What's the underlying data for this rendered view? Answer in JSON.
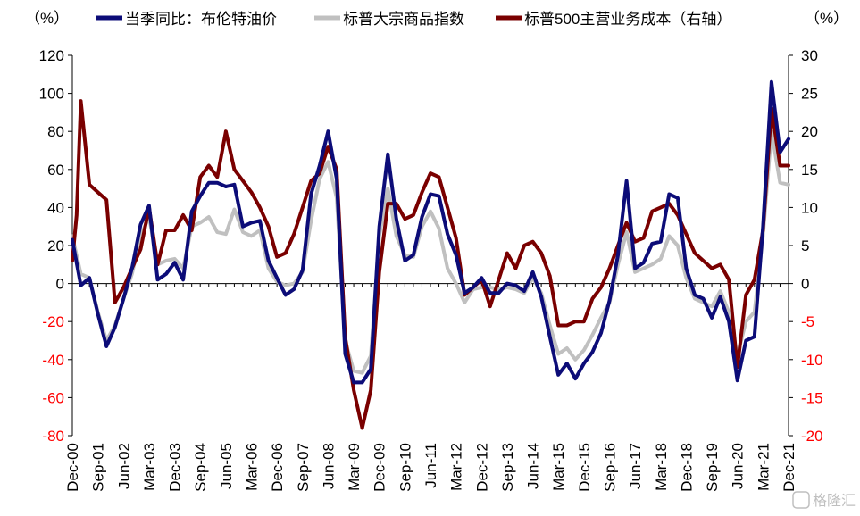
{
  "chart_data": {
    "type": "line",
    "left_axis": {
      "unit": "（%）",
      "ylim": [
        -80,
        120
      ],
      "ticks": [
        120,
        100,
        80,
        60,
        40,
        20,
        0,
        -20,
        -40,
        -60,
        -80
      ],
      "color_positive": "#000000",
      "color_negative": "#ff0000"
    },
    "right_axis": {
      "unit": "（%）",
      "ylim": [
        -20,
        30
      ],
      "ticks": [
        30,
        25,
        20,
        15,
        10,
        5,
        0,
        -5,
        -10,
        -15,
        -20
      ],
      "color_positive": "#000000",
      "color_negative": "#ff0000"
    },
    "x_tick_labels": [
      "Dec-00",
      "Sep-01",
      "Jun-02",
      "Mar-03",
      "Dec-03",
      "Sep-04",
      "Jun-05",
      "Mar-06",
      "Dec-06",
      "Sep-07",
      "Jun-08",
      "Mar-09",
      "Dec-09",
      "Sep-10",
      "Jun-11",
      "Mar-12",
      "Dec-12",
      "Sep-13",
      "Jun-14",
      "Mar-15",
      "Dec-15",
      "Sep-16",
      "Jun-17",
      "Mar-18",
      "Dec-18",
      "Sep-19",
      "Jun-20",
      "Mar-21",
      "Dec-21"
    ],
    "x_start_quarter": "2000Q4",
    "x_end_quarter": "2021Q4",
    "grid": false,
    "legend_position": "top",
    "series": [
      {
        "name": "当季同比：布伦特油价",
        "color": "#0c0c78",
        "width": 4,
        "axis": "left",
        "points": [
          {
            "q": 0,
            "y": 23
          },
          {
            "q": 1,
            "y": -1
          },
          {
            "q": 2,
            "y": 3
          },
          {
            "q": 3,
            "y": -16
          },
          {
            "q": 4,
            "y": -33
          },
          {
            "q": 5,
            "y": -23
          },
          {
            "q": 6,
            "y": -8
          },
          {
            "q": 7,
            "y": 8
          },
          {
            "q": 8,
            "y": 31
          },
          {
            "q": 9,
            "y": 41
          },
          {
            "q": 10,
            "y": 2
          },
          {
            "q": 11,
            "y": 5
          },
          {
            "q": 12,
            "y": 11
          },
          {
            "q": 13,
            "y": 2
          },
          {
            "q": 14,
            "y": 38
          },
          {
            "q": 15,
            "y": 46
          },
          {
            "q": 16,
            "y": 53
          },
          {
            "q": 17,
            "y": 53
          },
          {
            "q": 18,
            "y": 51
          },
          {
            "q": 19,
            "y": 52
          },
          {
            "q": 20,
            "y": 30
          },
          {
            "q": 21,
            "y": 32
          },
          {
            "q": 22,
            "y": 33
          },
          {
            "q": 23,
            "y": 12
          },
          {
            "q": 24,
            "y": 3
          },
          {
            "q": 25,
            "y": -6
          },
          {
            "q": 26,
            "y": -3
          },
          {
            "q": 27,
            "y": 7
          },
          {
            "q": 28,
            "y": 47
          },
          {
            "q": 29,
            "y": 62
          },
          {
            "q": 30,
            "y": 80
          },
          {
            "q": 31,
            "y": 55
          },
          {
            "q": 32,
            "y": -37
          },
          {
            "q": 33,
            "y": -52
          },
          {
            "q": 34,
            "y": -52
          },
          {
            "q": 35,
            "y": -45
          },
          {
            "q": 36,
            "y": 30
          },
          {
            "q": 37,
            "y": 68
          },
          {
            "q": 38,
            "y": 34
          },
          {
            "q": 39,
            "y": 12
          },
          {
            "q": 40,
            "y": 15
          },
          {
            "q": 41,
            "y": 35
          },
          {
            "q": 42,
            "y": 47
          },
          {
            "q": 43,
            "y": 46
          },
          {
            "q": 44,
            "y": 26
          },
          {
            "q": 45,
            "y": 15
          },
          {
            "q": 46,
            "y": -5
          },
          {
            "q": 47,
            "y": -2
          },
          {
            "q": 48,
            "y": 3
          },
          {
            "q": 49,
            "y": -5
          },
          {
            "q": 50,
            "y": -5
          },
          {
            "q": 51,
            "y": 0
          },
          {
            "q": 52,
            "y": -1
          },
          {
            "q": 53,
            "y": -4
          },
          {
            "q": 54,
            "y": 6
          },
          {
            "q": 55,
            "y": -7
          },
          {
            "q": 56,
            "y": -28
          },
          {
            "q": 57,
            "y": -48
          },
          {
            "q": 58,
            "y": -42
          },
          {
            "q": 59,
            "y": -50
          },
          {
            "q": 60,
            "y": -42
          },
          {
            "q": 61,
            "y": -36
          },
          {
            "q": 62,
            "y": -26
          },
          {
            "q": 63,
            "y": -9
          },
          {
            "q": 64,
            "y": 15
          },
          {
            "q": 65,
            "y": 54
          },
          {
            "q": 66,
            "y": 8
          },
          {
            "q": 67,
            "y": 11
          },
          {
            "q": 68,
            "y": 21
          },
          {
            "q": 69,
            "y": 22
          },
          {
            "q": 70,
            "y": 47
          },
          {
            "q": 71,
            "y": 45
          },
          {
            "q": 72,
            "y": 8
          },
          {
            "q": 73,
            "y": -6
          },
          {
            "q": 74,
            "y": -8
          },
          {
            "q": 75,
            "y": -18
          },
          {
            "q": 76,
            "y": -7
          },
          {
            "q": 77,
            "y": -20
          },
          {
            "q": 78,
            "y": -51
          },
          {
            "q": 79,
            "y": -30
          },
          {
            "q": 80,
            "y": -28
          },
          {
            "q": 81,
            "y": 30
          },
          {
            "q": 82,
            "y": 106
          },
          {
            "q": 83,
            "y": 69
          },
          {
            "q": 84,
            "y": 76
          }
        ]
      },
      {
        "name": "标普大宗商品指数",
        "color": "#c0c0c0",
        "width": 4,
        "axis": "left",
        "points": [
          {
            "q": 0,
            "y": 25
          },
          {
            "q": 1,
            "y": 5
          },
          {
            "q": 2,
            "y": 3
          },
          {
            "q": 3,
            "y": -15
          },
          {
            "q": 4,
            "y": -30
          },
          {
            "q": 5,
            "y": -22
          },
          {
            "q": 6,
            "y": -8
          },
          {
            "q": 7,
            "y": 5
          },
          {
            "q": 8,
            "y": 25
          },
          {
            "q": 9,
            "y": 35
          },
          {
            "q": 10,
            "y": 10
          },
          {
            "q": 11,
            "y": 12
          },
          {
            "q": 12,
            "y": 13
          },
          {
            "q": 13,
            "y": 8
          },
          {
            "q": 14,
            "y": 30
          },
          {
            "q": 15,
            "y": 32
          },
          {
            "q": 16,
            "y": 35
          },
          {
            "q": 17,
            "y": 27
          },
          {
            "q": 18,
            "y": 26
          },
          {
            "q": 19,
            "y": 39
          },
          {
            "q": 20,
            "y": 27
          },
          {
            "q": 21,
            "y": 25
          },
          {
            "q": 22,
            "y": 28
          },
          {
            "q": 23,
            "y": 8
          },
          {
            "q": 24,
            "y": 1
          },
          {
            "q": 25,
            "y": -1
          },
          {
            "q": 26,
            "y": 0
          },
          {
            "q": 27,
            "y": 6
          },
          {
            "q": 28,
            "y": 33
          },
          {
            "q": 29,
            "y": 55
          },
          {
            "q": 30,
            "y": 64
          },
          {
            "q": 31,
            "y": 45
          },
          {
            "q": 32,
            "y": -30
          },
          {
            "q": 33,
            "y": -46
          },
          {
            "q": 34,
            "y": -47
          },
          {
            "q": 35,
            "y": -38
          },
          {
            "q": 36,
            "y": 25
          },
          {
            "q": 37,
            "y": 50
          },
          {
            "q": 38,
            "y": 25
          },
          {
            "q": 39,
            "y": 15
          },
          {
            "q": 40,
            "y": 14
          },
          {
            "q": 41,
            "y": 30
          },
          {
            "q": 42,
            "y": 38
          },
          {
            "q": 43,
            "y": 29
          },
          {
            "q": 44,
            "y": 8
          },
          {
            "q": 45,
            "y": 0
          },
          {
            "q": 46,
            "y": -10
          },
          {
            "q": 47,
            "y": -3
          },
          {
            "q": 48,
            "y": -2
          },
          {
            "q": 49,
            "y": -2
          },
          {
            "q": 50,
            "y": -3
          },
          {
            "q": 51,
            "y": -2
          },
          {
            "q": 52,
            "y": -3
          },
          {
            "q": 53,
            "y": -5
          },
          {
            "q": 54,
            "y": 3
          },
          {
            "q": 55,
            "y": -5
          },
          {
            "q": 56,
            "y": -22
          },
          {
            "q": 57,
            "y": -37
          },
          {
            "q": 58,
            "y": -34
          },
          {
            "q": 59,
            "y": -40
          },
          {
            "q": 60,
            "y": -35
          },
          {
            "q": 61,
            "y": -27
          },
          {
            "q": 62,
            "y": -18
          },
          {
            "q": 63,
            "y": -10
          },
          {
            "q": 64,
            "y": 10
          },
          {
            "q": 65,
            "y": 27
          },
          {
            "q": 66,
            "y": 6
          },
          {
            "q": 67,
            "y": 8
          },
          {
            "q": 68,
            "y": 10
          },
          {
            "q": 69,
            "y": 13
          },
          {
            "q": 70,
            "y": 25
          },
          {
            "q": 71,
            "y": 20
          },
          {
            "q": 72,
            "y": 3
          },
          {
            "q": 73,
            "y": -8
          },
          {
            "q": 74,
            "y": -10
          },
          {
            "q": 75,
            "y": -12
          },
          {
            "q": 76,
            "y": -4
          },
          {
            "q": 77,
            "y": -15
          },
          {
            "q": 78,
            "y": -38
          },
          {
            "q": 79,
            "y": -20
          },
          {
            "q": 80,
            "y": -15
          },
          {
            "q": 81,
            "y": 25
          },
          {
            "q": 82,
            "y": 80
          },
          {
            "q": 83,
            "y": 53
          },
          {
            "q": 84,
            "y": 52
          }
        ]
      },
      {
        "name": "标普500主营业务成本（右轴）",
        "color": "#7a0000",
        "width": 4,
        "axis": "right",
        "points": [
          {
            "q": 0,
            "y": 3
          },
          {
            "q": 0.5,
            "y": 9
          },
          {
            "q": 1,
            "y": 24
          },
          {
            "q": 2,
            "y": 13
          },
          {
            "q": 3,
            "y": 12
          },
          {
            "q": 4,
            "y": 11
          },
          {
            "q": 5,
            "y": -2.5
          },
          {
            "q": 6,
            "y": -0.5
          },
          {
            "q": 7,
            "y": 2
          },
          {
            "q": 8,
            "y": 4.5
          },
          {
            "q": 9,
            "y": 10
          },
          {
            "q": 10,
            "y": 2.5
          },
          {
            "q": 11,
            "y": 7
          },
          {
            "q": 12,
            "y": 7
          },
          {
            "q": 13,
            "y": 9
          },
          {
            "q": 14,
            "y": 7
          },
          {
            "q": 15,
            "y": 14
          },
          {
            "q": 16,
            "y": 15.5
          },
          {
            "q": 17,
            "y": 14
          },
          {
            "q": 18,
            "y": 20
          },
          {
            "q": 19,
            "y": 15
          },
          {
            "q": 20,
            "y": 13.5
          },
          {
            "q": 21,
            "y": 12
          },
          {
            "q": 22,
            "y": 10
          },
          {
            "q": 23,
            "y": 7.5
          },
          {
            "q": 24,
            "y": 3.5
          },
          {
            "q": 25,
            "y": 4
          },
          {
            "q": 26,
            "y": 6.5
          },
          {
            "q": 27,
            "y": 10
          },
          {
            "q": 28,
            "y": 13.5
          },
          {
            "q": 29,
            "y": 14.5
          },
          {
            "q": 30,
            "y": 18
          },
          {
            "q": 31,
            "y": 15
          },
          {
            "q": 32,
            "y": -7
          },
          {
            "q": 33,
            "y": -14
          },
          {
            "q": 34,
            "y": -19
          },
          {
            "q": 35,
            "y": -14
          },
          {
            "q": 36,
            "y": 1.5
          },
          {
            "q": 37,
            "y": 10.5
          },
          {
            "q": 38,
            "y": 10.5
          },
          {
            "q": 39,
            "y": 8.5
          },
          {
            "q": 40,
            "y": 9
          },
          {
            "q": 41,
            "y": 12
          },
          {
            "q": 42,
            "y": 14.5
          },
          {
            "q": 43,
            "y": 14
          },
          {
            "q": 44,
            "y": 10
          },
          {
            "q": 45,
            "y": 6
          },
          {
            "q": 46,
            "y": -1.5
          },
          {
            "q": 47,
            "y": -0.5
          },
          {
            "q": 48,
            "y": 0.5
          },
          {
            "q": 49,
            "y": -3
          },
          {
            "q": 50,
            "y": 0.5
          },
          {
            "q": 51,
            "y": 4
          },
          {
            "q": 52,
            "y": 2
          },
          {
            "q": 53,
            "y": 5
          },
          {
            "q": 54,
            "y": 5.5
          },
          {
            "q": 55,
            "y": 4
          },
          {
            "q": 56,
            "y": 1
          },
          {
            "q": 57,
            "y": -5.5
          },
          {
            "q": 58,
            "y": -5.5
          },
          {
            "q": 59,
            "y": -5
          },
          {
            "q": 60,
            "y": -5
          },
          {
            "q": 61,
            "y": -2
          },
          {
            "q": 62,
            "y": -0.5
          },
          {
            "q": 63,
            "y": 2
          },
          {
            "q": 64,
            "y": 5
          },
          {
            "q": 65,
            "y": 8
          },
          {
            "q": 66,
            "y": 5.5
          },
          {
            "q": 67,
            "y": 6
          },
          {
            "q": 68,
            "y": 9.5
          },
          {
            "q": 69,
            "y": 10
          },
          {
            "q": 70,
            "y": 10.5
          },
          {
            "q": 71,
            "y": 9
          },
          {
            "q": 72,
            "y": 6.5
          },
          {
            "q": 73,
            "y": 4
          },
          {
            "q": 74,
            "y": 3
          },
          {
            "q": 75,
            "y": 2
          },
          {
            "q": 76,
            "y": 2.5
          },
          {
            "q": 77,
            "y": 0.5
          },
          {
            "q": 78,
            "y": -11
          },
          {
            "q": 79,
            "y": -1.5
          },
          {
            "q": 80,
            "y": 0.5
          },
          {
            "q": 81,
            "y": 7
          },
          {
            "q": 82,
            "y": 23
          },
          {
            "q": 83,
            "y": 15.5
          },
          {
            "q": 84,
            "y": 15.5
          }
        ]
      }
    ]
  },
  "watermark": "格隆汇"
}
